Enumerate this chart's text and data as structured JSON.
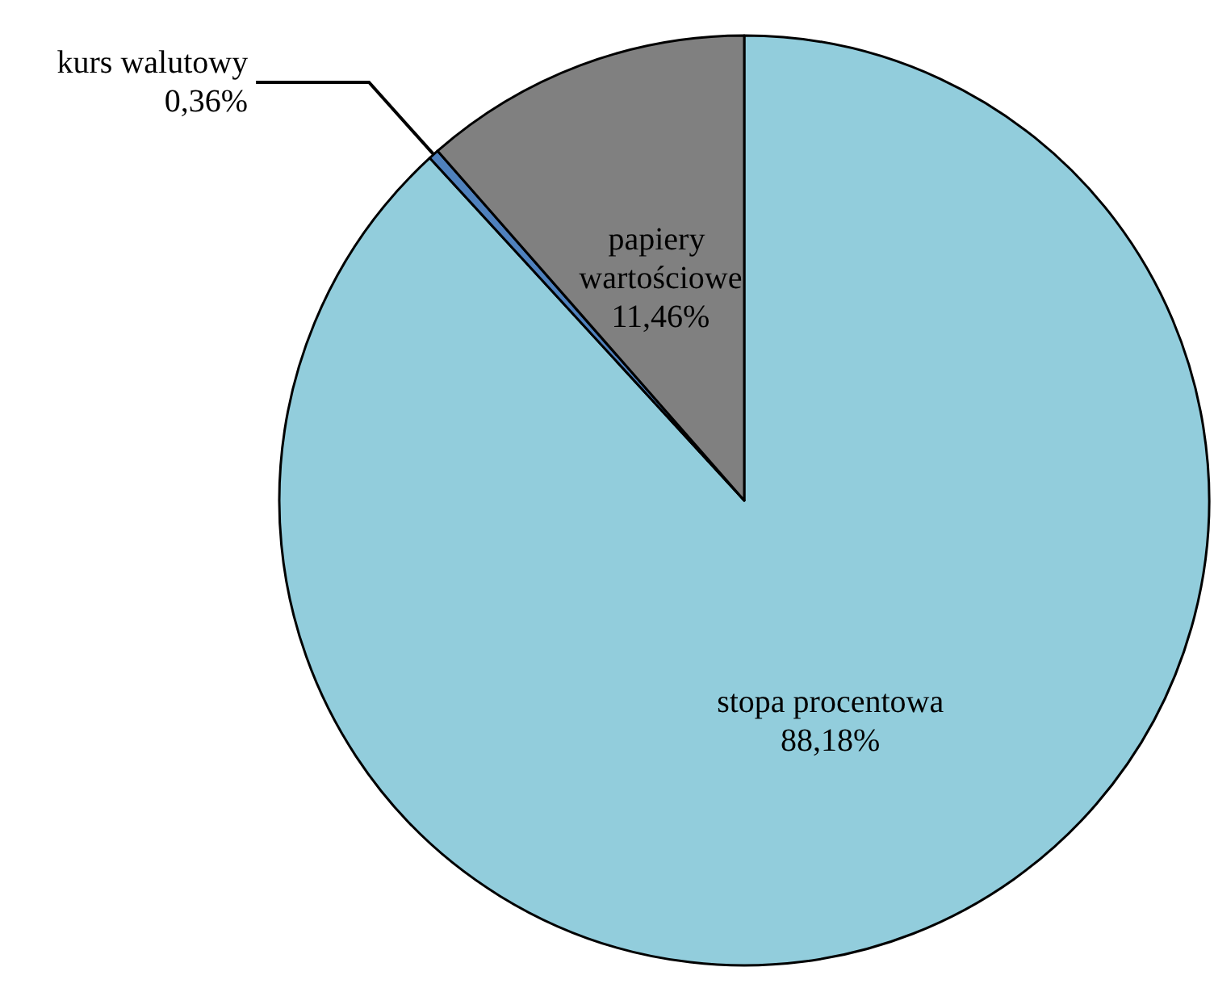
{
  "chart_data": {
    "type": "pie",
    "categories": [
      "stopa procentowa",
      "kurs walutowy",
      "papiery wartościowe"
    ],
    "values": [
      88.18,
      0.36,
      11.46
    ],
    "colors": [
      "#92cddc",
      "#4f81bd",
      "#808080"
    ],
    "value_labels": [
      "88,18%",
      "0,36%",
      "11,46%"
    ],
    "legend": false
  }
}
